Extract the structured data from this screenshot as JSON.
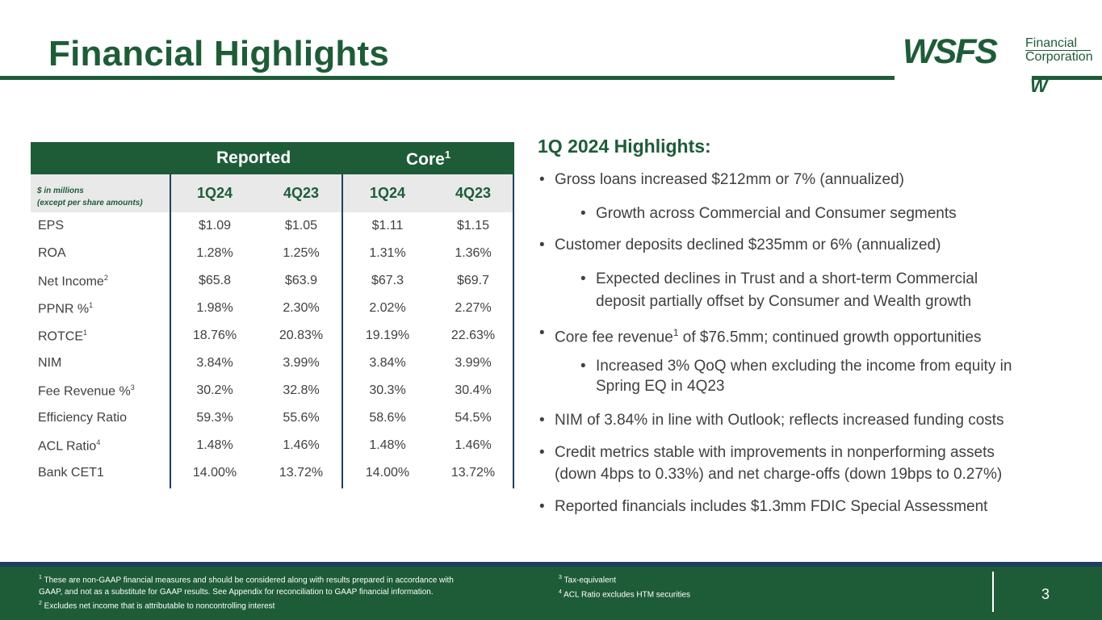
{
  "title": "Financial Highlights",
  "logo": {
    "main": "WSFS",
    "sub1": "Financial",
    "sub2": "Corporation",
    "mark": "W"
  },
  "table": {
    "group_reported": "Reported",
    "group_core": "Core",
    "group_core_sup": "1",
    "units_line1": "$ in millions",
    "units_line2": "(except per share amounts)",
    "columns": [
      "1Q24",
      "4Q23",
      "1Q24",
      "4Q23"
    ],
    "rows": [
      {
        "label": "EPS",
        "sup": "",
        "values": [
          "$1.09",
          "$1.05",
          "$1.11",
          "$1.15"
        ]
      },
      {
        "label": "ROA",
        "sup": "",
        "values": [
          "1.28%",
          "1.25%",
          "1.31%",
          "1.36%"
        ]
      },
      {
        "label": "Net Income",
        "sup": "2",
        "values": [
          "$65.8",
          "$63.9",
          "$67.3",
          "$69.7"
        ]
      },
      {
        "label": "PPNR %",
        "sup": "1",
        "values": [
          "1.98%",
          "2.30%",
          "2.02%",
          "2.27%"
        ]
      },
      {
        "label": "ROTCE",
        "sup": "1",
        "values": [
          "18.76%",
          "20.83%",
          "19.19%",
          "22.63%"
        ]
      },
      {
        "label": "NIM",
        "sup": "",
        "values": [
          "3.84%",
          "3.99%",
          "3.84%",
          "3.99%"
        ]
      },
      {
        "label": "Fee Revenue %",
        "sup": "3",
        "values": [
          "30.2%",
          "32.8%",
          "30.3%",
          "30.4%"
        ]
      },
      {
        "label": "Efficiency Ratio",
        "sup": "",
        "values": [
          "59.3%",
          "55.6%",
          "58.6%",
          "54.5%"
        ]
      },
      {
        "label": "ACL Ratio",
        "sup": "4",
        "values": [
          "1.48%",
          "1.46%",
          "1.48%",
          "1.46%"
        ]
      },
      {
        "label": "Bank CET1",
        "sup": "",
        "values": [
          "14.00%",
          "13.72%",
          "14.00%",
          "13.72%"
        ]
      }
    ]
  },
  "highlights": {
    "title": "1Q 2024 Highlights:",
    "b1": "Gross loans increased $212mm or 7% (annualized)",
    "b1a": "Growth across Commercial and Consumer segments",
    "b2": "Customer deposits declined $235mm or 6% (annualized)",
    "b2a_l1": "Expected declines in Trust and a short-term Commercial",
    "b2a_l2": "deposit partially offset by Consumer and Wealth growth",
    "b3_pre": "Core fee revenue",
    "b3_sup": "1",
    "b3_post": " of $76.5mm; continued growth opportunities",
    "b3a_l1": "Increased 3% QoQ when excluding the income from equity in",
    "b3a_l2": "Spring EQ in 4Q23",
    "b4": "NIM of 3.84% in line with Outlook; reflects increased funding costs",
    "b5_l1": "Credit metrics stable with improvements in nonperforming assets",
    "b5_l2": "(down 4bps to 0.33%) and net charge-offs (down 19bps to 0.27%)",
    "b6": "Reported financials includes $1.3mm FDIC Special Assessment"
  },
  "footer": {
    "fn1_sup": "1",
    "fn1_l1": " These are non-GAAP financial measures and should be considered along with results prepared in accordance with",
    "fn1_l2": "GAAP, and not as a substitute for GAAP results.  See Appendix for reconciliation to GAAP financial information.",
    "fn2_sup": "2",
    "fn2": " Excludes net income that is attributable to noncontrolling interest",
    "fn3_sup": "3",
    "fn3": " Tax-equivalent",
    "fn4_sup": "4",
    "fn4": " ACL Ratio excludes HTM securities",
    "page": "3"
  }
}
